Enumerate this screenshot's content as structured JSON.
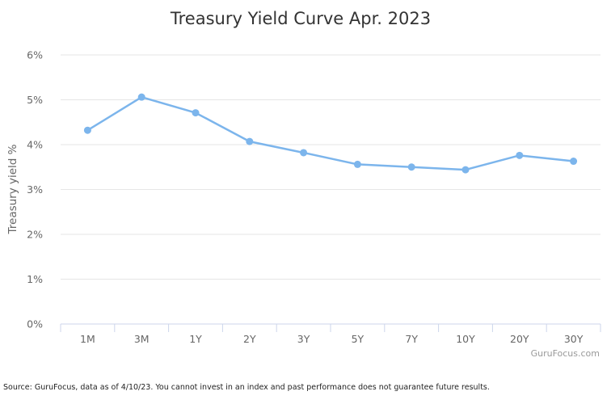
{
  "chart_data": {
    "type": "line",
    "title": "Treasury Yield Curve Apr. 2023",
    "xlabel": "",
    "ylabel": "Treasury yield %",
    "categories": [
      "1M",
      "3M",
      "1Y",
      "2Y",
      "3Y",
      "5Y",
      "7Y",
      "10Y",
      "20Y",
      "30Y"
    ],
    "series": [
      {
        "values": [
          4.32,
          5.06,
          4.71,
          4.07,
          3.82,
          3.56,
          3.5,
          3.44,
          3.76,
          3.63
        ]
      }
    ],
    "ylim": [
      0,
      6
    ],
    "yticks": [
      "0%",
      "1%",
      "2%",
      "3%",
      "4%",
      "5%",
      "6%"
    ],
    "grid": true,
    "legend": "none",
    "line_color": "#7cb5ec"
  },
  "credit": "GuruFocus.com",
  "source_note": "Source: GuruFocus, data as of 4/10/23. You cannot invest in an index and past performance does not guarantee future results."
}
